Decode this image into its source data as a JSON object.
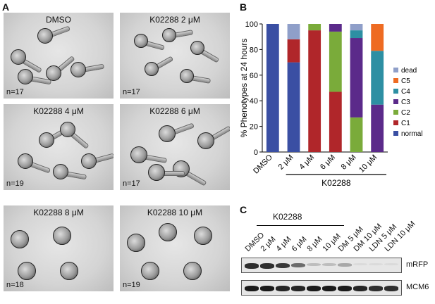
{
  "panel_labels": {
    "a": "A",
    "b": "B",
    "c": "C"
  },
  "photos": [
    {
      "title": "DMSO",
      "n": "n=17"
    },
    {
      "title": "K02288 2 μM",
      "n": "n=17"
    },
    {
      "title": "K02288 4 μM",
      "n": "n=19"
    },
    {
      "title": "K02288 6 μM",
      "n": "n=17"
    },
    {
      "title": "K02288 8 μM",
      "n": "n=18"
    },
    {
      "title": "K02288 10 μM",
      "n": "n=19"
    }
  ],
  "chart_data": {
    "type": "bar",
    "stacked": true,
    "ylabel": "% Phenotypes at 24 hours",
    "ylim": [
      0,
      100
    ],
    "yticks": [
      0,
      20,
      40,
      60,
      80,
      100
    ],
    "categories": [
      "DMSO",
      "2 μM",
      "4 μM",
      "6 μM",
      "8 μM",
      "10 μM"
    ],
    "group_label": "K02288",
    "legend_position": "right",
    "series": [
      {
        "name": "normal",
        "color": "#3a4fa3",
        "values": [
          100,
          70,
          0,
          0,
          0,
          0
        ]
      },
      {
        "name": "C1",
        "color": "#b0262a",
        "values": [
          0,
          18,
          95,
          47,
          0,
          0
        ]
      },
      {
        "name": "C2",
        "color": "#7aab3a",
        "values": [
          0,
          0,
          5,
          47,
          27,
          0
        ]
      },
      {
        "name": "C3",
        "color": "#5b2a8a",
        "values": [
          0,
          0,
          0,
          6,
          62,
          37
        ]
      },
      {
        "name": "C4",
        "color": "#2d8fa3",
        "values": [
          0,
          0,
          0,
          0,
          6,
          42
        ]
      },
      {
        "name": "C5",
        "color": "#ee6b22",
        "values": [
          0,
          0,
          0,
          0,
          0,
          21
        ]
      },
      {
        "name": "dead",
        "color": "#8f9fc9",
        "values": [
          0,
          12,
          0,
          0,
          5,
          0
        ]
      }
    ]
  },
  "western": {
    "group_label": "K02288",
    "lanes": [
      "DMSO",
      "2 μM",
      "4 μM",
      "6 μM",
      "8 μM",
      "10 μM",
      "DM 5 μM",
      "DM 10 μM",
      "LDN 5 μM",
      "LDN 10 μM"
    ],
    "blots": [
      {
        "name": "mRFP",
        "intensity": [
          0.9,
          0.9,
          0.85,
          0.6,
          0.2,
          0.2,
          0.3,
          0.05,
          0.05,
          0.05
        ]
      },
      {
        "name": "MCM6",
        "intensity": [
          1,
          1,
          0.95,
          0.95,
          1,
          1,
          1,
          0.95,
          0.9,
          0.9
        ]
      }
    ]
  }
}
